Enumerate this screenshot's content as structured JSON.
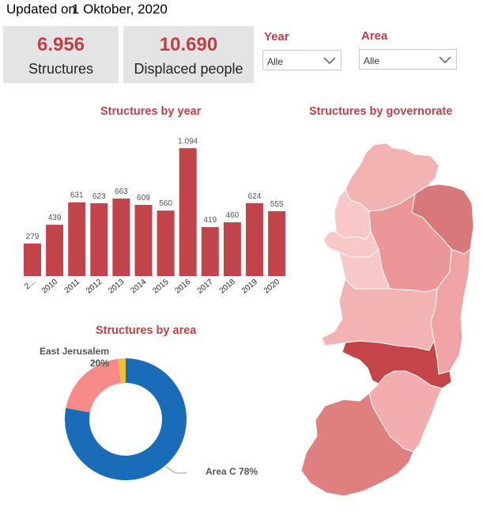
{
  "header": {
    "updated_prefix": "Updated on",
    "updated_date": "1 Oktober, 2020"
  },
  "kpis": [
    {
      "value": "6.956",
      "label": "Structures"
    },
    {
      "value": "10.690",
      "label": "Displaced people"
    }
  ],
  "filters": {
    "year": {
      "title": "Year",
      "selected": "Alle"
    },
    "area": {
      "title": "Area",
      "selected": "Alle"
    }
  },
  "colors": {
    "accent": "#bf4145",
    "bar": "#c0444a",
    "donut_area_c": "#1a6bb8",
    "donut_ej": "#f88a8a",
    "donut_other": "#f2c12e"
  },
  "charts": {
    "by_year": {
      "title": "Structures by year",
      "chart_data": {
        "type": "bar",
        "categories": [
          "2...",
          "2010",
          "2011",
          "2012",
          "2013",
          "2014",
          "2015",
          "2016",
          "2017",
          "2018",
          "2019",
          "2020"
        ],
        "values": [
          279,
          439,
          631,
          623,
          663,
          609,
          560,
          1094,
          419,
          460,
          624,
          555
        ],
        "value_labels": [
          "279",
          "439",
          "631",
          "623",
          "663",
          "609",
          "560",
          "1.094",
          "419",
          "460",
          "624",
          "555"
        ],
        "ylim": [
          0,
          1150
        ]
      }
    },
    "by_area": {
      "title": "Structures by area",
      "chart_data": {
        "type": "pie",
        "slices": [
          {
            "name": "Area C",
            "value": 78,
            "color": "#1a6bb8",
            "label": "Area C 78%"
          },
          {
            "name": "East Jerusalem",
            "value": 20,
            "color": "#f88a8a",
            "label_name": "East Jerusalem",
            "label_pct": "20%"
          },
          {
            "name": "",
            "value": 2,
            "color": "#f2c12e"
          }
        ]
      }
    },
    "by_governorate": {
      "title": "Structures by governorate"
    }
  }
}
